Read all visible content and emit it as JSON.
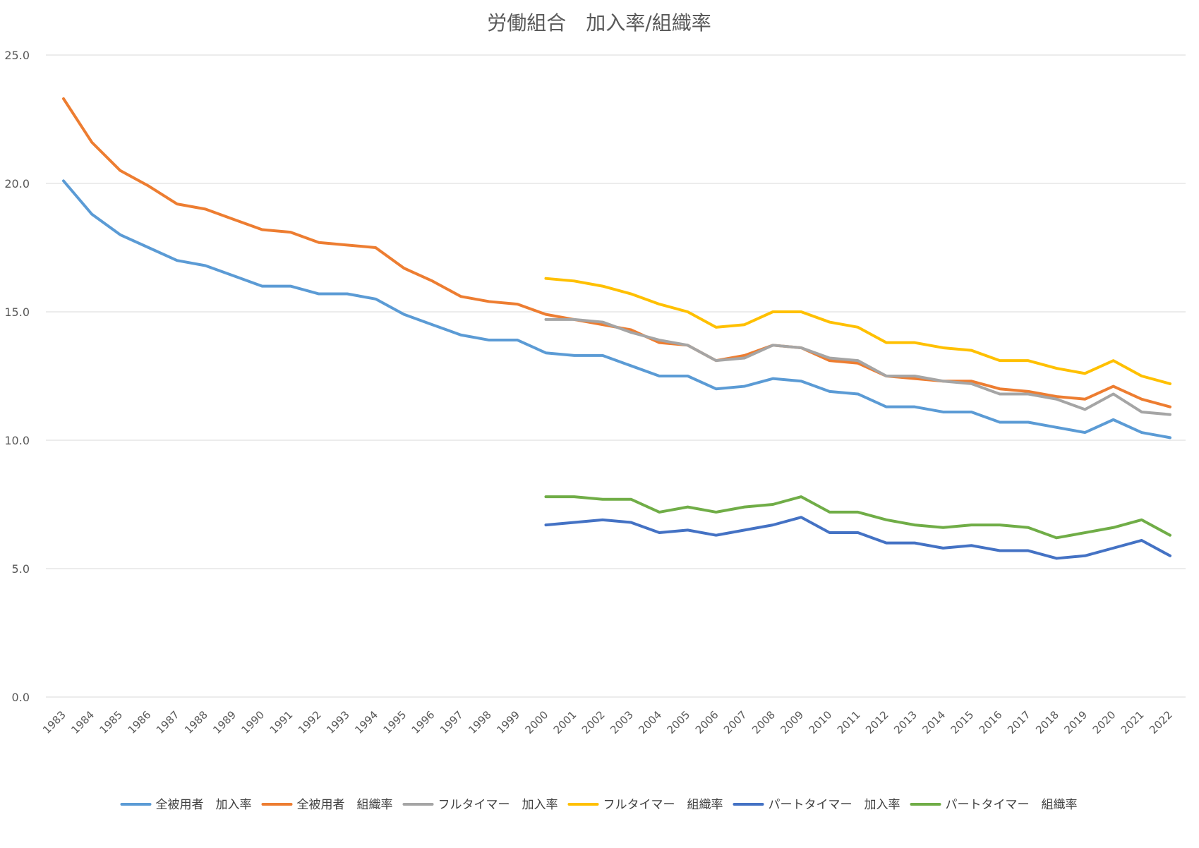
{
  "chart_data": {
    "type": "line",
    "title": "労働組合　加入率/組織率",
    "xlabel": "",
    "ylabel": "",
    "ylim": [
      0,
      25
    ],
    "yticks": [
      "0.0",
      "5.0",
      "10.0",
      "15.0",
      "20.0",
      "25.0"
    ],
    "grid": true,
    "legend_position": "bottom",
    "categories": [
      "1983",
      "1984",
      "1985",
      "1986",
      "1987",
      "1988",
      "1989",
      "1990",
      "1991",
      "1992",
      "1993",
      "1994",
      "1995",
      "1996",
      "1997",
      "1998",
      "1999",
      "2000",
      "2001",
      "2002",
      "2003",
      "2004",
      "2005",
      "2006",
      "2007",
      "2008",
      "2009",
      "2010",
      "2011",
      "2012",
      "2013",
      "2014",
      "2015",
      "2016",
      "2017",
      "2018",
      "2019",
      "2020",
      "2021",
      "2022"
    ],
    "series": [
      {
        "name": "全被用者　加入率",
        "color": "#5b9bd5",
        "values": [
          20.1,
          18.8,
          18.0,
          17.5,
          17.0,
          16.8,
          16.4,
          16.0,
          16.0,
          15.7,
          15.7,
          15.5,
          14.9,
          14.5,
          14.1,
          13.9,
          13.9,
          13.4,
          13.3,
          13.3,
          12.9,
          12.5,
          12.5,
          12.0,
          12.1,
          12.4,
          12.3,
          11.9,
          11.8,
          11.3,
          11.3,
          11.1,
          11.1,
          10.7,
          10.7,
          10.5,
          10.3,
          10.8,
          10.3,
          10.1
        ]
      },
      {
        "name": "全被用者　組織率",
        "color": "#ed7d31",
        "values": [
          23.3,
          21.6,
          20.5,
          19.9,
          19.2,
          19.0,
          18.6,
          18.2,
          18.1,
          17.7,
          17.6,
          17.5,
          16.7,
          16.2,
          15.6,
          15.4,
          15.3,
          14.9,
          14.7,
          14.5,
          14.3,
          13.8,
          13.7,
          13.1,
          13.3,
          13.7,
          13.6,
          13.1,
          13.0,
          12.5,
          12.4,
          12.3,
          12.3,
          12.0,
          11.9,
          11.7,
          11.6,
          12.1,
          11.6,
          11.3
        ]
      },
      {
        "name": "フルタイマー　加入率",
        "color": "#a5a5a5",
        "values": [
          null,
          null,
          null,
          null,
          null,
          null,
          null,
          null,
          null,
          null,
          null,
          null,
          null,
          null,
          null,
          null,
          null,
          14.7,
          14.7,
          14.6,
          14.2,
          13.9,
          13.7,
          13.1,
          13.2,
          13.7,
          13.6,
          13.2,
          13.1,
          12.5,
          12.5,
          12.3,
          12.2,
          11.8,
          11.8,
          11.6,
          11.2,
          11.8,
          11.1,
          11.0
        ]
      },
      {
        "name": "フルタイマー　組織率",
        "color": "#ffc000",
        "values": [
          null,
          null,
          null,
          null,
          null,
          null,
          null,
          null,
          null,
          null,
          null,
          null,
          null,
          null,
          null,
          null,
          null,
          16.3,
          16.2,
          16.0,
          15.7,
          15.3,
          15.0,
          14.4,
          14.5,
          15.0,
          15.0,
          14.6,
          14.4,
          13.8,
          13.8,
          13.6,
          13.5,
          13.1,
          13.1,
          12.8,
          12.6,
          13.1,
          12.5,
          12.2
        ]
      },
      {
        "name": "パートタイマー　加入率",
        "color": "#4472c4",
        "values": [
          null,
          null,
          null,
          null,
          null,
          null,
          null,
          null,
          null,
          null,
          null,
          null,
          null,
          null,
          null,
          null,
          null,
          6.7,
          6.8,
          6.9,
          6.8,
          6.4,
          6.5,
          6.3,
          6.5,
          6.7,
          7.0,
          6.4,
          6.4,
          6.0,
          6.0,
          5.8,
          5.9,
          5.7,
          5.7,
          5.4,
          5.5,
          5.8,
          6.1,
          5.5
        ]
      },
      {
        "name": "パートタイマー　組織率",
        "color": "#70ad47",
        "values": [
          null,
          null,
          null,
          null,
          null,
          null,
          null,
          null,
          null,
          null,
          null,
          null,
          null,
          null,
          null,
          null,
          null,
          7.8,
          7.8,
          7.7,
          7.7,
          7.2,
          7.4,
          7.2,
          7.4,
          7.5,
          7.8,
          7.2,
          7.2,
          6.9,
          6.7,
          6.6,
          6.7,
          6.7,
          6.6,
          6.2,
          6.4,
          6.6,
          6.9,
          6.3
        ]
      }
    ]
  }
}
